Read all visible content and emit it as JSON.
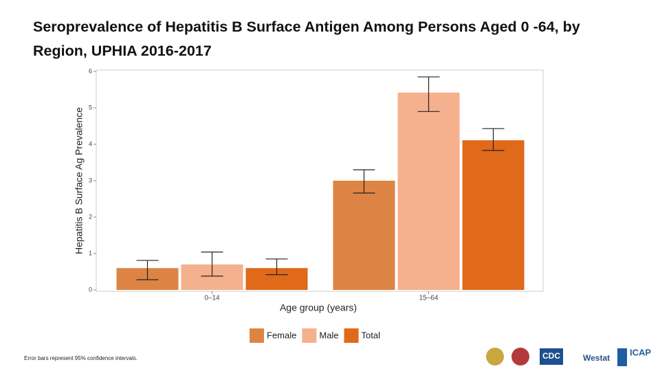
{
  "chart_data": {
    "type": "bar",
    "title": "Seroprevalence of Hepatitis B Surface Antigen Among Persons Aged 0 -64, by Region, UPHIA 2016-2017",
    "x_label": "Age group (years)",
    "y_label": "Hepatitis B Surface Ag Prevalence",
    "categories": [
      "0–14",
      "15–64"
    ],
    "series": [
      {
        "name": "Female",
        "color": "#dd8444",
        "values": [
          0.6,
          3.0
        ],
        "lower": [
          0.28,
          2.66
        ],
        "upper": [
          0.81,
          3.3
        ]
      },
      {
        "name": "Male",
        "color": "#f5b08e",
        "values": [
          0.7,
          5.42
        ],
        "lower": [
          0.38,
          4.9
        ],
        "upper": [
          1.04,
          5.85
        ]
      },
      {
        "name": "Total",
        "color": "#e0691a",
        "values": [
          0.6,
          4.11
        ],
        "lower": [
          0.42,
          3.83
        ],
        "upper": [
          0.85,
          4.43
        ]
      }
    ],
    "ylim": [
      0,
      6
    ],
    "yticks": [
      0,
      1,
      2,
      3,
      4,
      5,
      6
    ],
    "grid": false,
    "legend": "bottom",
    "note": "Error bars represent 95% confidence intervals."
  },
  "logos": [
    "CDC",
    "Westat",
    "ICAP"
  ]
}
